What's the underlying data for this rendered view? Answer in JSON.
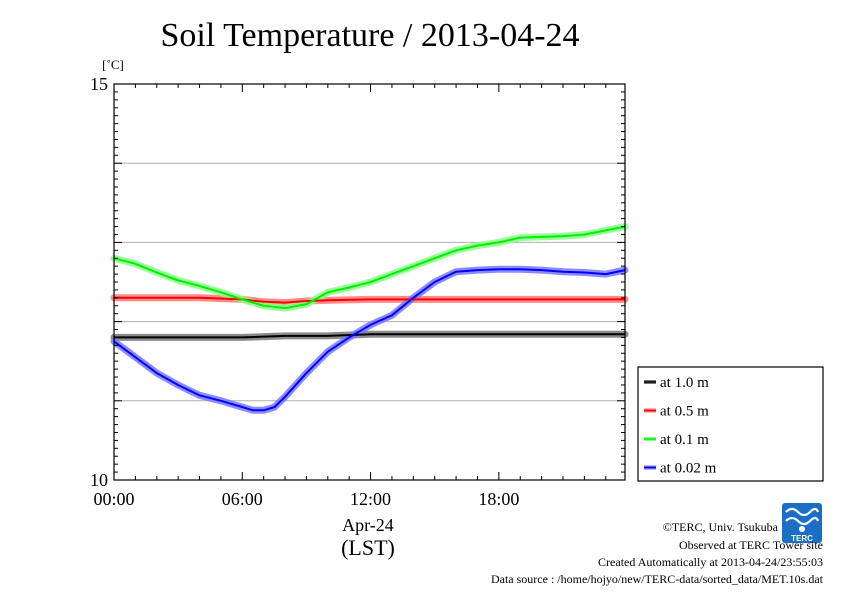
{
  "chart_data": {
    "type": "line",
    "title": "Soil Temperature / 2013-04-24",
    "y_unit": "[˚C]",
    "ylim": [
      10,
      15
    ],
    "yticks": [
      10,
      15
    ],
    "xlim": [
      0,
      23.9
    ],
    "xticks": [
      0,
      6,
      12,
      18
    ],
    "xtick_labels": [
      "00:00",
      "06:00",
      "12:00",
      "18:00"
    ],
    "xdate_label": "Apr-24",
    "xlabel": "(LST)",
    "grid": true,
    "legend_position": "right",
    "series": [
      {
        "name": "at 1.0 m",
        "color": "#000000",
        "band_color": "#777777",
        "x": [
          0,
          2,
          4,
          6,
          8,
          10,
          12,
          14,
          16,
          18,
          20,
          22,
          23.9
        ],
        "y": [
          11.8,
          11.8,
          11.8,
          11.8,
          11.82,
          11.82,
          11.84,
          11.84,
          11.84,
          11.84,
          11.84,
          11.84,
          11.84
        ]
      },
      {
        "name": "at 0.5 m",
        "color": "#ff0000",
        "band_color": "#ff7777",
        "x": [
          0,
          2,
          4,
          6,
          7,
          8,
          9,
          10,
          12,
          14,
          16,
          18,
          20,
          22,
          23.9
        ],
        "y": [
          12.3,
          12.3,
          12.3,
          12.28,
          12.25,
          12.24,
          12.26,
          12.27,
          12.28,
          12.28,
          12.28,
          12.28,
          12.28,
          12.28,
          12.28
        ]
      },
      {
        "name": "at 0.1 m",
        "color": "#00ee00",
        "band_color": "#88ff88",
        "x": [
          0,
          1,
          2,
          3,
          4,
          5,
          6,
          7,
          8,
          9,
          10,
          11,
          12,
          13,
          14,
          15,
          16,
          17,
          18,
          19,
          20,
          21,
          22,
          23.9
        ],
        "y": [
          12.8,
          12.73,
          12.62,
          12.52,
          12.45,
          12.37,
          12.28,
          12.2,
          12.17,
          12.22,
          12.37,
          12.43,
          12.5,
          12.6,
          12.7,
          12.8,
          12.9,
          12.96,
          13.0,
          13.06,
          13.07,
          13.08,
          13.1,
          13.2
        ]
      },
      {
        "name": "at 0.02 m",
        "color": "#0000ff",
        "band_color": "#7777ff",
        "x": [
          0,
          1,
          2,
          3,
          4,
          5,
          6,
          6.5,
          7,
          7.5,
          8,
          9,
          10,
          11,
          12,
          13,
          14,
          15,
          16,
          17,
          18,
          19,
          20,
          21,
          22,
          23,
          23.9
        ],
        "y": [
          11.75,
          11.55,
          11.35,
          11.2,
          11.07,
          11.0,
          10.92,
          10.88,
          10.88,
          10.92,
          11.05,
          11.35,
          11.62,
          11.8,
          11.96,
          12.08,
          12.3,
          12.5,
          12.63,
          12.65,
          12.66,
          12.66,
          12.65,
          12.63,
          12.62,
          12.6,
          12.65
        ]
      }
    ]
  },
  "footer": {
    "copyright": "©TERC, Univ. Tsukuba",
    "site": "Observed at TERC Tower site",
    "created": "Created Automatically at 2013-04-24/23:55:03",
    "source": "Data source : /home/hojyo/new/TERC-data/sorted_data/MET.10s.dat"
  },
  "logo": {
    "text": "TERC",
    "color": "#1a6fc4"
  }
}
